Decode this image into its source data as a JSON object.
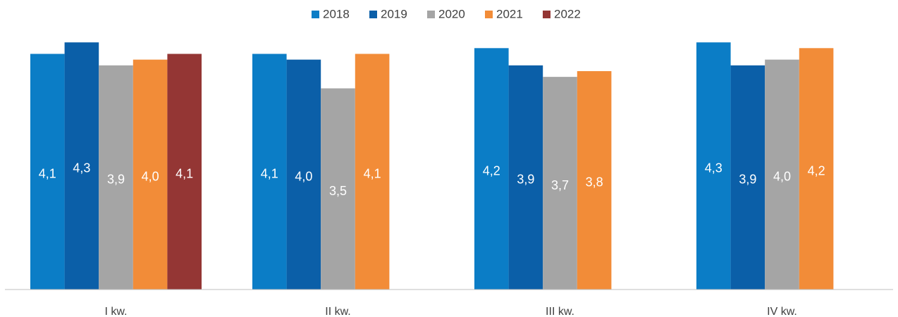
{
  "chart_data": {
    "type": "bar",
    "categories": [
      "I kw.",
      "II kw.",
      "III kw.",
      "IV kw."
    ],
    "series": [
      {
        "name": "2018",
        "color": "#0b7dc6",
        "values": [
          4.1,
          4.1,
          4.2,
          4.3
        ],
        "value_labels": [
          "4,1",
          "4,1",
          "4,2",
          "4,3"
        ]
      },
      {
        "name": "2019",
        "color": "#0b5fa8",
        "values": [
          4.3,
          4.0,
          3.9,
          3.9
        ],
        "value_labels": [
          "4,3",
          "4,0",
          "3,9",
          "3,9"
        ]
      },
      {
        "name": "2020",
        "color": "#a5a5a5",
        "values": [
          3.9,
          3.5,
          3.7,
          4.0
        ],
        "value_labels": [
          "3,9",
          "3,5",
          "3,7",
          "4,0"
        ]
      },
      {
        "name": "2021",
        "color": "#f28c38",
        "values": [
          4.0,
          4.1,
          3.8,
          4.2
        ],
        "value_labels": [
          "4,0",
          "4,1",
          "3,8",
          "4,2"
        ]
      },
      {
        "name": "2022",
        "color": "#943634",
        "values": [
          4.1,
          null,
          null,
          null
        ],
        "value_labels": [
          "4,1",
          null,
          null,
          null
        ]
      }
    ],
    "ylim": [
      0,
      4.4
    ],
    "legend": "top"
  }
}
